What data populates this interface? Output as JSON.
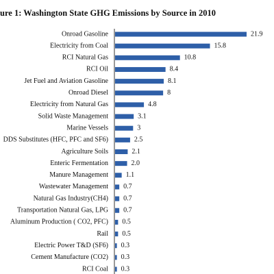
{
  "chart_data": {
    "type": "hbar",
    "title": "ure 1: Washington State GHG Emissions by Source in 2010",
    "categories": [
      "Onroad Gasoline",
      "Electricity from Coal",
      "RCI Natural Gas",
      "RCI Oil",
      "Jet Fuel and Aviation Gasoline",
      "Onroad Diesel",
      "Electricity from Natural Gas",
      "Solid Waste Management",
      "Marine Vessels",
      "DDS Substitutes (HFC, PFC and SF6)",
      "Agriculture Soils",
      "Enteric Fermentation",
      "Manure Management",
      "Wastewater Management",
      "Natural Gas Industry(CH4)",
      "Transportation Natural Gas, LPG",
      "Aluminum Production ( CO2, PFC)",
      "Rail",
      "Electric Power T&D (SF6)",
      "Cement Manufacture (CO2)",
      "RCI Coal"
    ],
    "values": [
      21.9,
      15.8,
      10.8,
      8.4,
      8.1,
      8,
      4.8,
      3.1,
      3,
      2.5,
      2.1,
      2,
      1.1,
      0.7,
      0.7,
      0.7,
      0.5,
      0.5,
      0.3,
      0.3,
      0.3
    ],
    "value_labels": [
      "21.9",
      "15.8",
      "10.8",
      "8.4",
      "8.1",
      "8",
      "4.8",
      "3.1",
      "3",
      "2.5",
      "2.1",
      "2.0",
      "1.1",
      "0.7",
      "0.7",
      "0.7",
      "0.5",
      "0.5",
      "0.3",
      "0.3",
      "0.3"
    ],
    "color": "#2e5fa8"
  }
}
